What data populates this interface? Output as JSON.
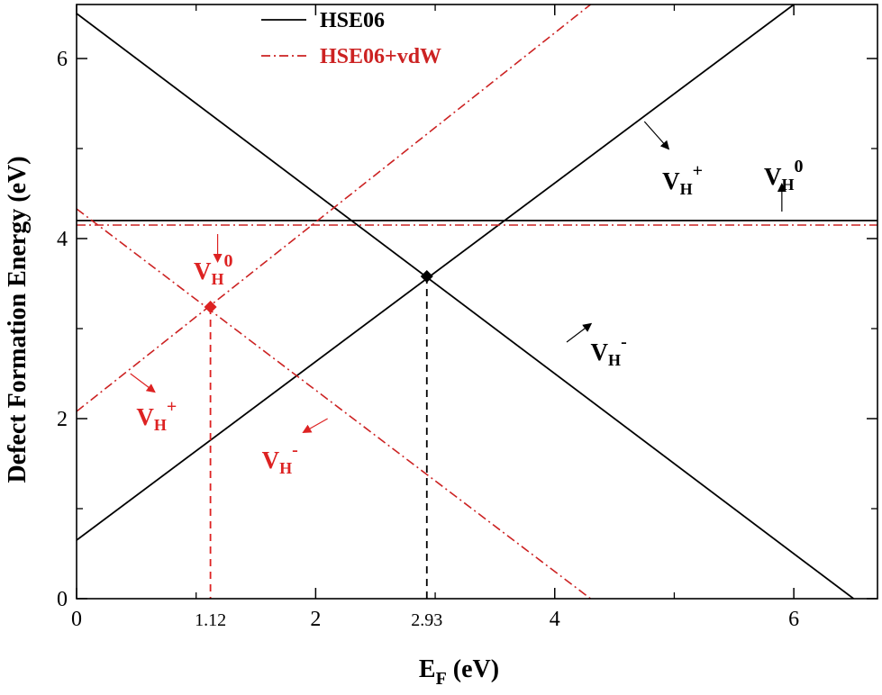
{
  "chart_data": {
    "type": "line",
    "title": "",
    "xlabel": {
      "main": "E",
      "sub": "F",
      "unit": " (eV)"
    },
    "ylabel": "Defect Formation Energy (eV)",
    "xlim": [
      0,
      6.7
    ],
    "ylim": [
      0,
      6.6
    ],
    "x_major_ticks": [
      0,
      2,
      4,
      6
    ],
    "x_minor_ticks": [
      1,
      3,
      5
    ],
    "x_extra_tick_labels": [
      "1.12",
      "2.93"
    ],
    "y_major_ticks": [
      0,
      2,
      4,
      6
    ],
    "y_minor_ticks": [
      1,
      3,
      5
    ],
    "grid": false,
    "legend_position": "top-center",
    "legend": [
      {
        "label": "HSE06",
        "color": "#000000",
        "dash": "solid"
      },
      {
        "label": "HSE06+vdW",
        "color": "#cc2222",
        "dash": "dashdot"
      }
    ],
    "series": [
      {
        "name": "V_H^+ (HSE06)",
        "group": "HSE06",
        "color": "#000000",
        "dash": "solid",
        "points": [
          [
            0,
            0.65
          ],
          [
            6,
            6.6
          ]
        ]
      },
      {
        "name": "V_H^0 (HSE06)",
        "group": "HSE06",
        "color": "#000000",
        "dash": "solid",
        "points": [
          [
            0,
            4.2
          ],
          [
            6.7,
            4.2
          ]
        ]
      },
      {
        "name": "V_H^- (HSE06)",
        "group": "HSE06",
        "color": "#000000",
        "dash": "solid",
        "points": [
          [
            0,
            6.5
          ],
          [
            6.5,
            0
          ]
        ]
      },
      {
        "name": "V_H^+ (HSE06+vdW)",
        "group": "HSE06+vdW",
        "color": "#cc2222",
        "dash": "dashdot",
        "points": [
          [
            0,
            2.08
          ],
          [
            4.3,
            6.6
          ]
        ]
      },
      {
        "name": "V_H^0 (HSE06+vdW)",
        "group": "HSE06+vdW",
        "color": "#cc2222",
        "dash": "dashdot",
        "points": [
          [
            0,
            4.15
          ],
          [
            6.7,
            4.15
          ]
        ]
      },
      {
        "name": "V_H^- (HSE06+vdW)",
        "group": "HSE06+vdW",
        "color": "#cc2222",
        "dash": "dashdot",
        "points": [
          [
            0,
            4.33
          ],
          [
            4.3,
            0
          ]
        ]
      }
    ],
    "crossing_points": [
      {
        "x": 2.93,
        "y": 3.58,
        "color": "#000000",
        "label": "2.93"
      },
      {
        "x": 1.12,
        "y": 3.24,
        "color": "#dd2222",
        "label": "1.12"
      }
    ],
    "annotations": [
      {
        "color": "#000000",
        "main": "V",
        "sub": "H",
        "sup": "+",
        "text_at": [
          4.9,
          4.55
        ],
        "arrow_from": [
          4.75,
          5.3
        ],
        "arrow_to": [
          4.95,
          5.0
        ]
      },
      {
        "color": "#000000",
        "main": "V",
        "sub": "H",
        "sup": "0",
        "text_at": [
          5.75,
          4.6
        ],
        "arrow_from": [
          5.9,
          4.3
        ],
        "arrow_to": [
          5.9,
          4.6
        ]
      },
      {
        "color": "#000000",
        "main": "V",
        "sub": "H",
        "sup": "-",
        "text_at": [
          4.3,
          2.65
        ],
        "arrow_from": [
          4.1,
          2.85
        ],
        "arrow_to": [
          4.3,
          3.05
        ]
      },
      {
        "color": "#dd2222",
        "main": "V",
        "sub": "H",
        "sup": "0",
        "text_at": [
          0.98,
          3.55
        ],
        "arrow_from": [
          1.18,
          4.05
        ],
        "arrow_to": [
          1.18,
          3.75
        ]
      },
      {
        "color": "#dd2222",
        "main": "V",
        "sub": "H",
        "sup": "+",
        "text_at": [
          0.5,
          1.93
        ],
        "arrow_from": [
          0.45,
          2.5
        ],
        "arrow_to": [
          0.65,
          2.3
        ]
      },
      {
        "color": "#dd2222",
        "main": "V",
        "sub": "H",
        "sup": "-",
        "text_at": [
          1.55,
          1.45
        ],
        "arrow_from": [
          2.1,
          2.0
        ],
        "arrow_to": [
          1.9,
          1.85
        ]
      }
    ]
  }
}
